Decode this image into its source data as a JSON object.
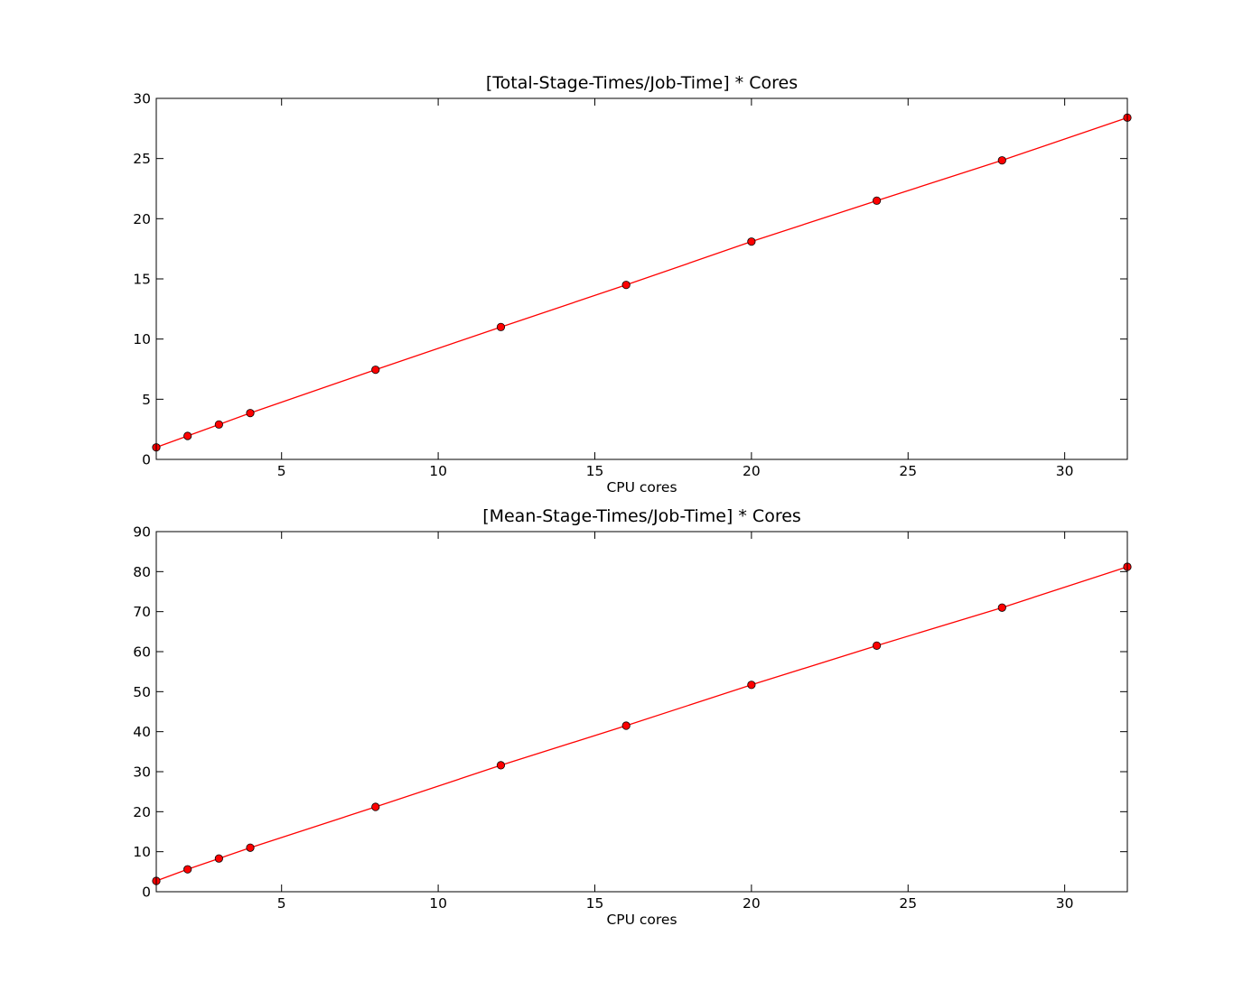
{
  "chart_data": [
    {
      "type": "line",
      "title": "[Total-Stage-Times/Job-Time] * Cores",
      "xlabel": "CPU cores",
      "ylabel": "",
      "xlim": [
        1,
        32
      ],
      "ylim": [
        0,
        30
      ],
      "xticks": [
        5,
        10,
        15,
        20,
        25,
        30
      ],
      "yticks": [
        0,
        5,
        10,
        15,
        20,
        25,
        30
      ],
      "grid": false,
      "series": [
        {
          "color": "#ff0000",
          "marker": "circle",
          "x": [
            1,
            2,
            3,
            4,
            8,
            12,
            16,
            20,
            24,
            28,
            32
          ],
          "y": [
            1.0,
            1.95,
            2.9,
            3.85,
            7.45,
            11.0,
            14.5,
            18.1,
            21.5,
            24.85,
            28.4
          ]
        }
      ]
    },
    {
      "type": "line",
      "title": "[Mean-Stage-Times/Job-Time] * Cores",
      "xlabel": "CPU cores",
      "ylabel": "",
      "xlim": [
        1,
        32
      ],
      "ylim": [
        0,
        90
      ],
      "xticks": [
        5,
        10,
        15,
        20,
        25,
        30
      ],
      "yticks": [
        0,
        10,
        20,
        30,
        40,
        50,
        60,
        70,
        80,
        90
      ],
      "grid": false,
      "series": [
        {
          "color": "#ff0000",
          "marker": "circle",
          "x": [
            1,
            2,
            3,
            4,
            8,
            12,
            16,
            20,
            24,
            28,
            32
          ],
          "y": [
            2.7,
            5.6,
            8.3,
            11.0,
            21.2,
            31.6,
            41.5,
            51.7,
            61.5,
            71.0,
            81.2
          ]
        }
      ]
    }
  ]
}
